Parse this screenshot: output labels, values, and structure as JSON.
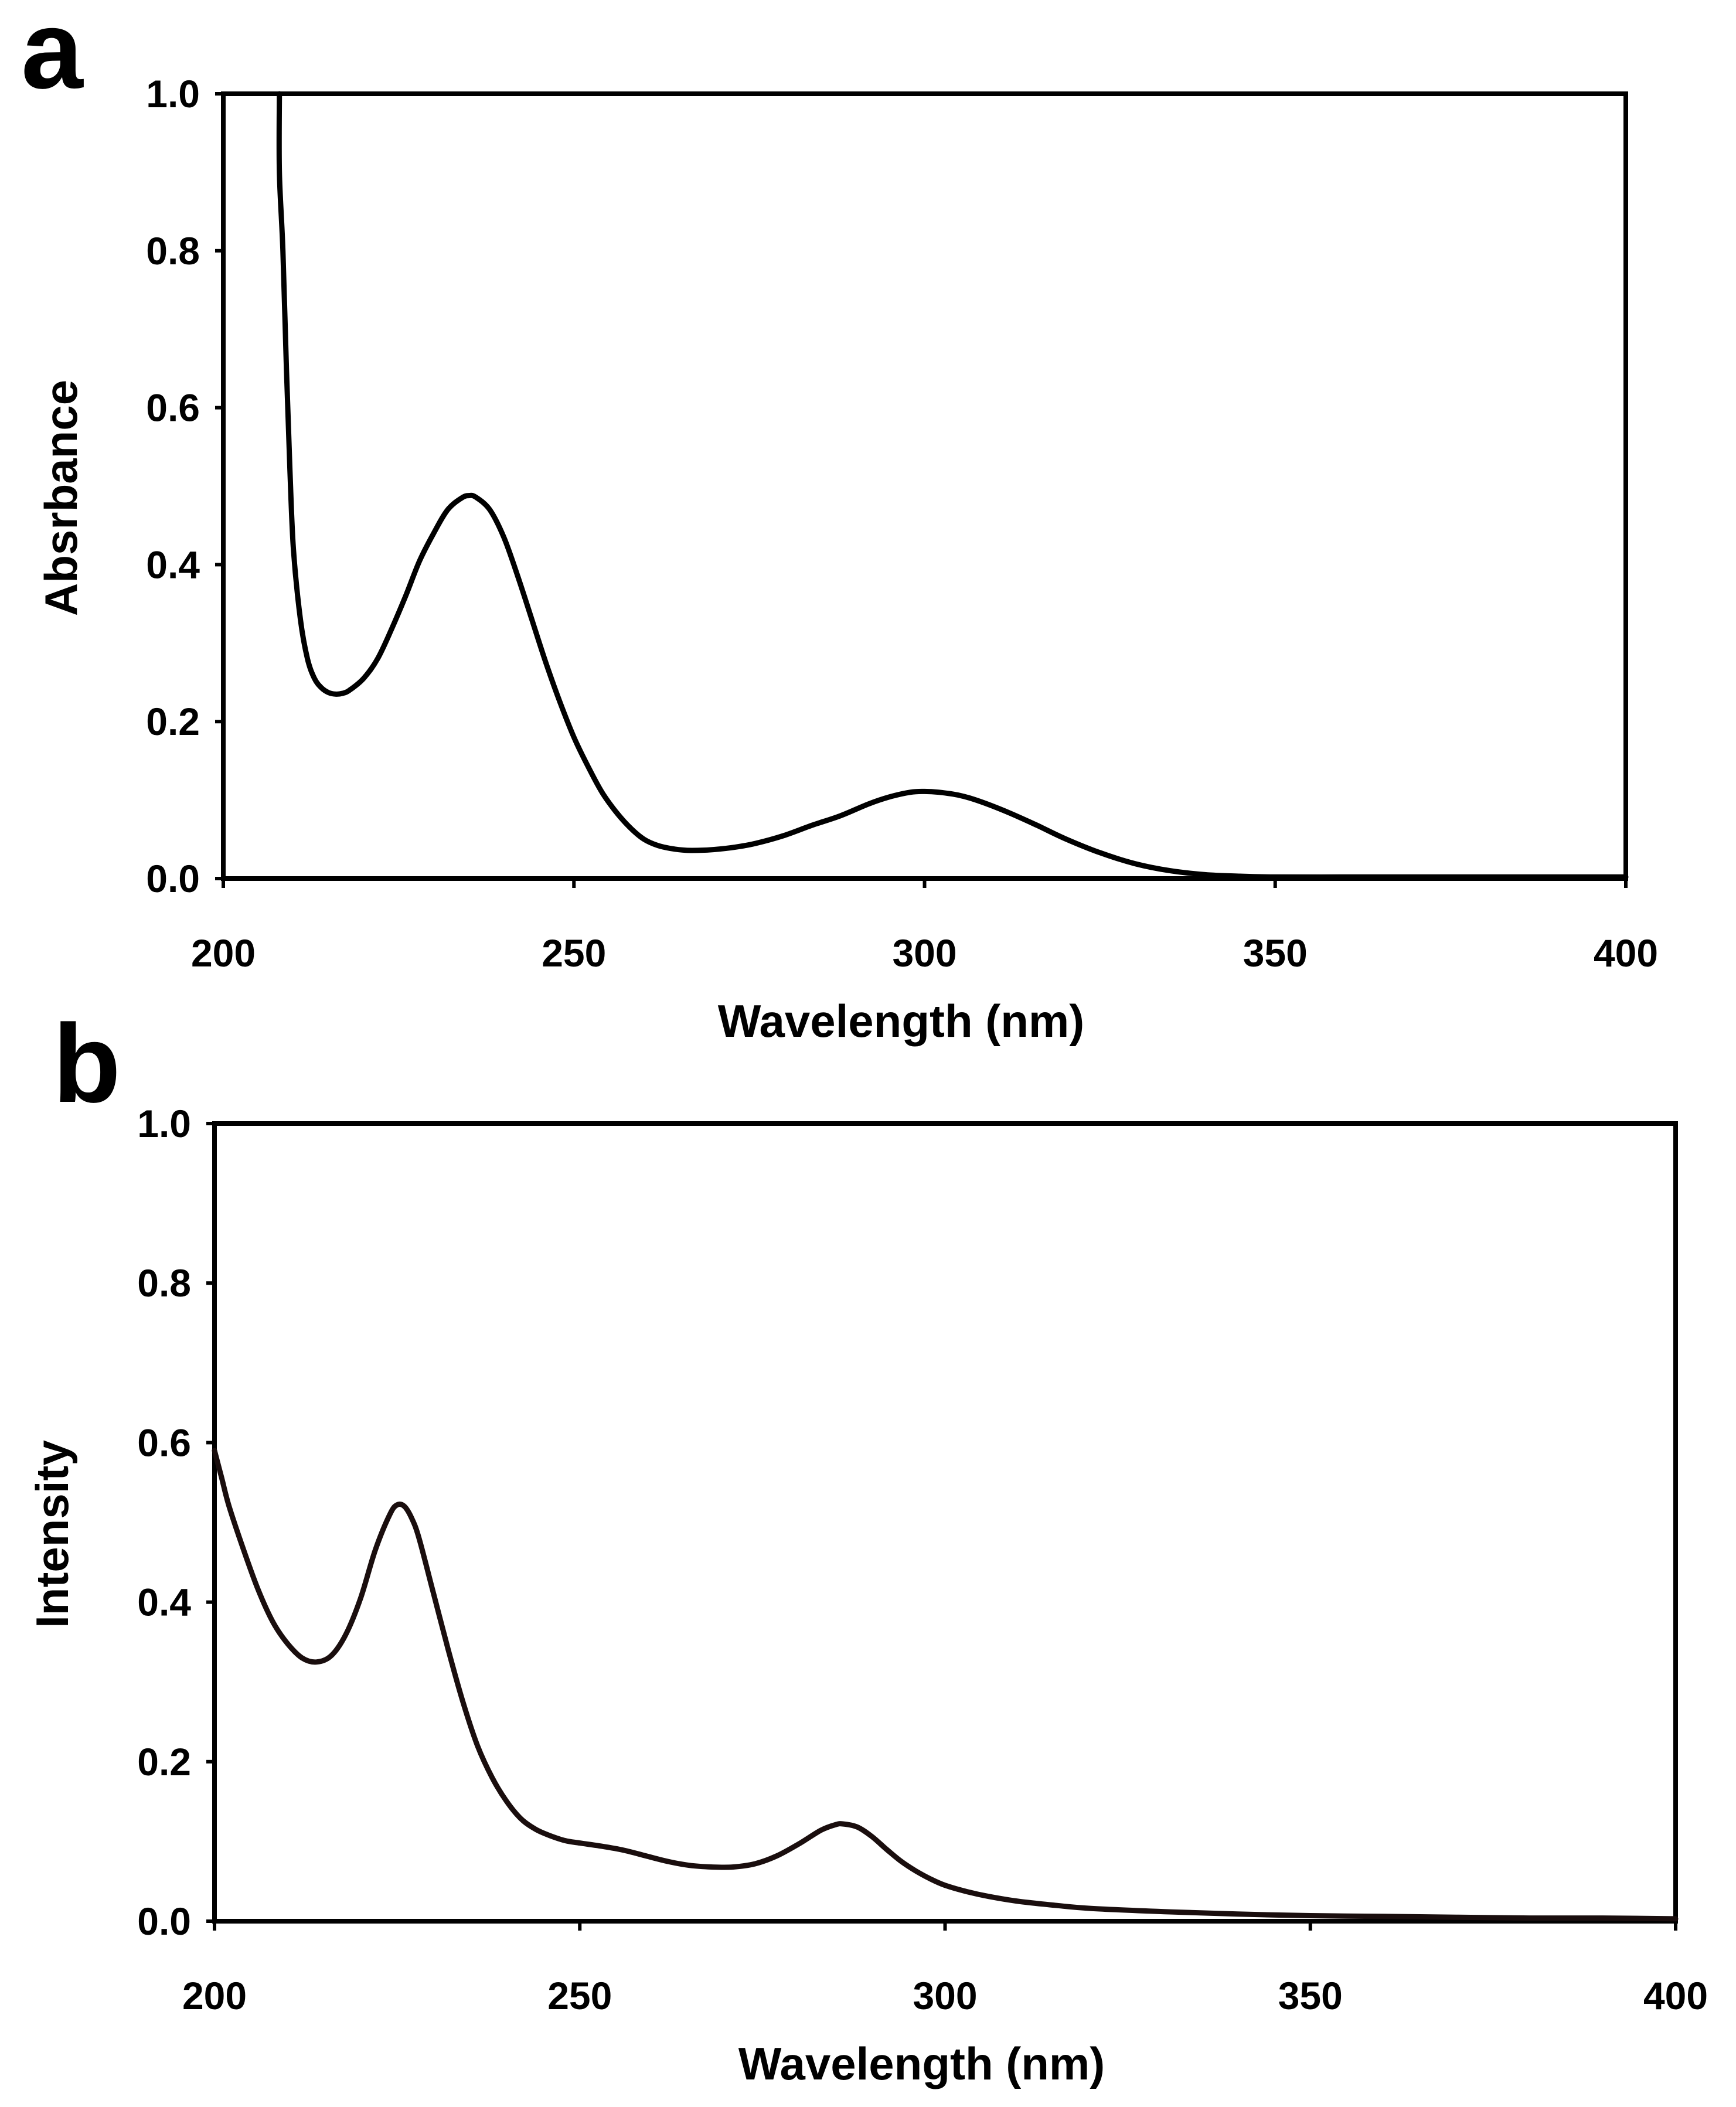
{
  "figure": {
    "panels": [
      "a",
      "b"
    ]
  },
  "chart_data": [
    {
      "panel": "a",
      "type": "line",
      "title": "",
      "xlabel": "Wavelength (nm)",
      "ylabel": "Absrbance",
      "xlim": [
        200,
        400
      ],
      "ylim": [
        0.0,
        1.0
      ],
      "xticks": [
        "200",
        "250",
        "300",
        "350",
        "400"
      ],
      "xtick_values": [
        200,
        250,
        300,
        350,
        400
      ],
      "yticks": [
        "0.0",
        "0.2",
        "0.4",
        "0.6",
        "0.8",
        "1.0"
      ],
      "ytick_values": [
        0.0,
        0.2,
        0.4,
        0.6,
        0.8,
        1.0
      ],
      "grid": false,
      "line_color": "#000000",
      "series": [
        {
          "name": "absorbance",
          "x": [
            208,
            208,
            208.5,
            209,
            209.5,
            210,
            211,
            212,
            213,
            214,
            215,
            216,
            217,
            218,
            220,
            222,
            224,
            226,
            228,
            230,
            232,
            234,
            235,
            236,
            238,
            240,
            242,
            244,
            246,
            248,
            250,
            252,
            254,
            256,
            258,
            260,
            262,
            264,
            266,
            268,
            270,
            273,
            276,
            280,
            284,
            288,
            292,
            295,
            298,
            300,
            302,
            305,
            308,
            312,
            316,
            320,
            325,
            330,
            335,
            340,
            345,
            350,
            360,
            370,
            380,
            390,
            400
          ],
          "y": [
            1.0,
            0.9,
            0.8,
            0.65,
            0.52,
            0.42,
            0.33,
            0.28,
            0.255,
            0.243,
            0.237,
            0.235,
            0.236,
            0.24,
            0.255,
            0.28,
            0.318,
            0.36,
            0.405,
            0.44,
            0.47,
            0.485,
            0.488,
            0.486,
            0.47,
            0.435,
            0.385,
            0.33,
            0.275,
            0.225,
            0.18,
            0.143,
            0.11,
            0.085,
            0.065,
            0.05,
            0.042,
            0.038,
            0.036,
            0.036,
            0.037,
            0.04,
            0.045,
            0.055,
            0.068,
            0.08,
            0.095,
            0.104,
            0.11,
            0.111,
            0.11,
            0.106,
            0.098,
            0.084,
            0.068,
            0.051,
            0.033,
            0.019,
            0.01,
            0.005,
            0.003,
            0.002,
            0.002,
            0.002,
            0.002,
            0.002,
            0.002
          ]
        }
      ]
    },
    {
      "panel": "b",
      "type": "line",
      "title": "",
      "xlabel": "Wavelength (nm)",
      "ylabel": "Intensity",
      "xlim": [
        200,
        400
      ],
      "ylim": [
        0.0,
        1.0
      ],
      "xticks": [
        "200",
        "250",
        "300",
        "350",
        "400"
      ],
      "xtick_values": [
        200,
        250,
        300,
        350,
        400
      ],
      "yticks": [
        "0.0",
        "0.2",
        "0.4",
        "0.6",
        "0.8",
        "1.0"
      ],
      "ytick_values": [
        0.0,
        0.2,
        0.4,
        0.6,
        0.8,
        1.0
      ],
      "grid": false,
      "line_color": "#1a0e0e",
      "series": [
        {
          "name": "intensity",
          "x": [
            200,
            201,
            202,
            204,
            206,
            208,
            210,
            212,
            214,
            216,
            218,
            220,
            222,
            224,
            225,
            226,
            227,
            228,
            230,
            232,
            234,
            236,
            238,
            240,
            242,
            244,
            246,
            248,
            250,
            253,
            256,
            259,
            262,
            265,
            268,
            271,
            274,
            277,
            280,
            283,
            285,
            286,
            288,
            290,
            292,
            294,
            296,
            298,
            300,
            303,
            306,
            310,
            315,
            320,
            330,
            340,
            350,
            360,
            370,
            380,
            390,
            400
          ],
          "y": [
            0.59,
            0.555,
            0.52,
            0.465,
            0.415,
            0.375,
            0.348,
            0.33,
            0.325,
            0.333,
            0.36,
            0.405,
            0.465,
            0.51,
            0.522,
            0.52,
            0.505,
            0.48,
            0.41,
            0.34,
            0.275,
            0.22,
            0.18,
            0.15,
            0.128,
            0.115,
            0.107,
            0.101,
            0.098,
            0.094,
            0.089,
            0.082,
            0.075,
            0.07,
            0.068,
            0.068,
            0.072,
            0.082,
            0.097,
            0.114,
            0.121,
            0.122,
            0.118,
            0.106,
            0.09,
            0.075,
            0.063,
            0.053,
            0.045,
            0.037,
            0.031,
            0.025,
            0.02,
            0.016,
            0.012,
            0.009,
            0.007,
            0.006,
            0.005,
            0.004,
            0.004,
            0.003
          ]
        }
      ]
    }
  ]
}
